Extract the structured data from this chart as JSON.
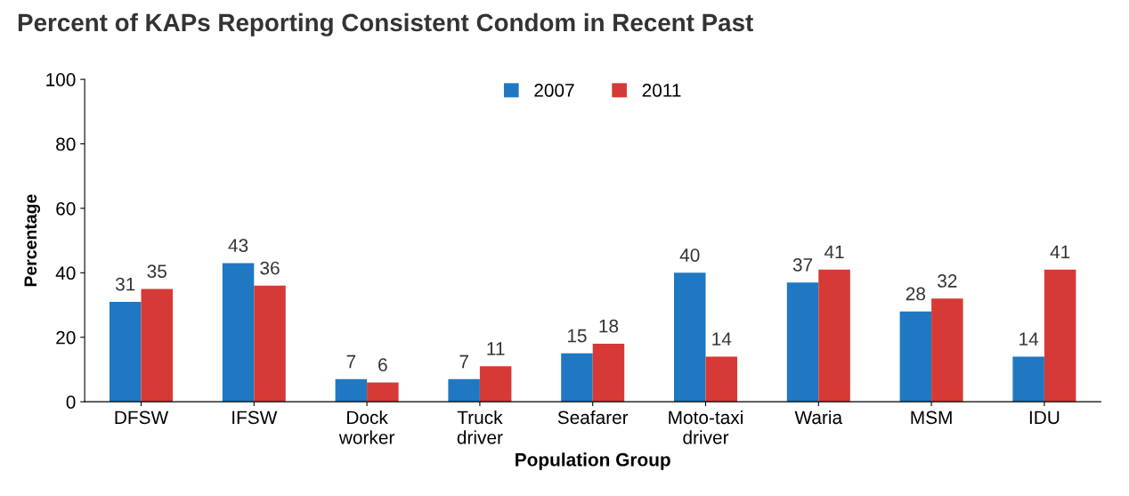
{
  "chart_data": {
    "type": "bar",
    "title": "Percent of KAPs Reporting Consistent Condom in Recent Past",
    "categories": [
      "DFSW",
      "IFSW",
      "Dock\nworker",
      "Truck\ndriver",
      "Seafarer",
      "Moto-taxi\ndriver",
      "Waria",
      "MSM",
      "IDU"
    ],
    "series": [
      {
        "name": "2007",
        "color": "#1f78c1",
        "values": [
          31,
          43,
          7,
          7,
          15,
          40,
          37,
          28,
          14
        ]
      },
      {
        "name": "2011",
        "color": "#d63a36",
        "values": [
          35,
          36,
          6,
          11,
          18,
          14,
          41,
          32,
          41
        ]
      }
    ],
    "xlabel": "Population Group",
    "ylabel": "Percentage",
    "ylim": [
      0,
      100
    ],
    "yticks": [
      0,
      20,
      40,
      60,
      80,
      100
    ],
    "data_labels": true,
    "legend": "top",
    "grid": false
  }
}
